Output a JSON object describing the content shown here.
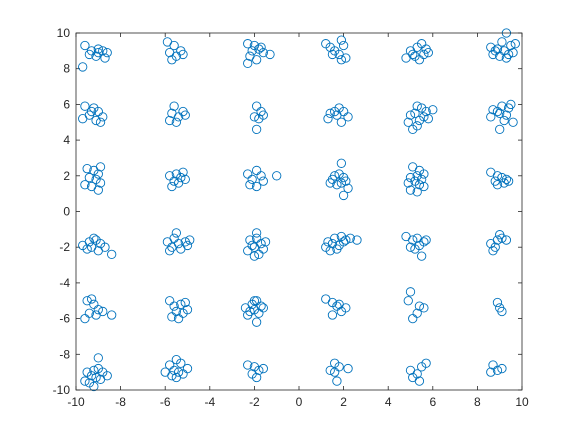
{
  "chart_data": {
    "type": "scatter",
    "title": "",
    "xlabel": "",
    "ylabel": "",
    "xlim": [
      -10,
      10
    ],
    "ylim": [
      -10,
      10
    ],
    "xticks": [
      -10,
      -8,
      -6,
      -4,
      -2,
      0,
      2,
      4,
      6,
      8,
      10
    ],
    "yticks": [
      -10,
      -8,
      -6,
      -4,
      -2,
      0,
      2,
      4,
      6,
      8,
      10
    ],
    "xtick_labels": [
      "-10",
      "-8",
      "-6",
      "-4",
      "-2",
      "0",
      "2",
      "4",
      "6",
      "8",
      "10"
    ],
    "ytick_labels": [
      "-10",
      "-8",
      "-6",
      "-4",
      "-2",
      "0",
      "2",
      "4",
      "6",
      "8",
      "10"
    ],
    "grid": false,
    "marker": "circle",
    "marker_color": "#0072BD",
    "series": [
      {
        "points": [
          [
            -9.6,
            9.3
          ],
          [
            -9.3,
            9.0
          ],
          [
            -9.0,
            9.1
          ],
          [
            -8.8,
            9.0
          ],
          [
            -8.6,
            8.9
          ],
          [
            -9.4,
            8.8
          ],
          [
            -9.1,
            8.7
          ],
          [
            -8.7,
            8.6
          ],
          [
            -9.0,
            8.9
          ],
          [
            -9.7,
            8.1
          ],
          [
            -5.9,
            9.5
          ],
          [
            -5.6,
            9.3
          ],
          [
            -5.3,
            9.0
          ],
          [
            -5.8,
            8.9
          ],
          [
            -5.5,
            8.7
          ],
          [
            -5.7,
            8.5
          ],
          [
            -5.2,
            8.8
          ],
          [
            -2.3,
            9.4
          ],
          [
            -2.0,
            9.3
          ],
          [
            -1.8,
            9.1
          ],
          [
            -2.1,
            9.0
          ],
          [
            -1.6,
            8.9
          ],
          [
            -1.3,
            8.8
          ],
          [
            -2.2,
            8.7
          ],
          [
            -1.9,
            8.5
          ],
          [
            -2.3,
            8.3
          ],
          [
            -1.7,
            9.2
          ],
          [
            1.2,
            9.4
          ],
          [
            1.4,
            9.2
          ],
          [
            1.6,
            9.0
          ],
          [
            1.9,
            9.6
          ],
          [
            2.0,
            9.3
          ],
          [
            1.8,
            8.8
          ],
          [
            2.1,
            8.6
          ],
          [
            1.9,
            8.5
          ],
          [
            1.5,
            8.8
          ],
          [
            5.5,
            9.4
          ],
          [
            5.3,
            9.2
          ],
          [
            5.7,
            9.1
          ],
          [
            5.0,
            9.0
          ],
          [
            5.6,
            8.8
          ],
          [
            5.2,
            8.7
          ],
          [
            4.8,
            8.6
          ],
          [
            5.4,
            8.5
          ],
          [
            5.8,
            8.9
          ],
          [
            5.1,
            8.8
          ],
          [
            8.6,
            9.2
          ],
          [
            8.9,
            9.1
          ],
          [
            9.2,
            9.0
          ],
          [
            9.5,
            9.3
          ],
          [
            9.6,
            8.9
          ],
          [
            9.0,
            8.7
          ],
          [
            8.7,
            8.8
          ],
          [
            9.3,
            8.6
          ],
          [
            9.1,
            9.5
          ],
          [
            9.3,
            10.0
          ],
          [
            9.7,
            9.4
          ],
          [
            8.8,
            9.0
          ],
          [
            9.4,
            8.8
          ],
          [
            -9.6,
            5.9
          ],
          [
            -9.2,
            5.8
          ],
          [
            -9.0,
            5.6
          ],
          [
            -9.4,
            5.4
          ],
          [
            -8.8,
            5.3
          ],
          [
            -9.7,
            5.2
          ],
          [
            -9.1,
            5.1
          ],
          [
            -8.9,
            5.0
          ],
          [
            -9.3,
            5.6
          ],
          [
            -5.6,
            5.9
          ],
          [
            -5.2,
            5.6
          ],
          [
            -5.7,
            5.5
          ],
          [
            -5.4,
            5.3
          ],
          [
            -5.8,
            5.1
          ],
          [
            -5.5,
            5.0
          ],
          [
            -5.1,
            5.4
          ],
          [
            -1.9,
            5.9
          ],
          [
            -1.7,
            5.6
          ],
          [
            -2.0,
            5.3
          ],
          [
            -1.8,
            5.2
          ],
          [
            -1.6,
            5.4
          ],
          [
            -1.9,
            4.6
          ],
          [
            1.8,
            5.8
          ],
          [
            2.0,
            5.6
          ],
          [
            1.4,
            5.5
          ],
          [
            1.7,
            5.4
          ],
          [
            2.2,
            5.3
          ],
          [
            1.3,
            5.2
          ],
          [
            1.9,
            5.0
          ],
          [
            1.6,
            5.6
          ],
          [
            5.3,
            5.9
          ],
          [
            5.5,
            5.8
          ],
          [
            5.7,
            5.6
          ],
          [
            5.2,
            5.5
          ],
          [
            5.0,
            5.4
          ],
          [
            5.6,
            5.3
          ],
          [
            5.4,
            5.1
          ],
          [
            4.9,
            5.0
          ],
          [
            5.3,
            4.8
          ],
          [
            5.1,
            4.6
          ],
          [
            5.8,
            5.2
          ],
          [
            6.0,
            5.7
          ],
          [
            8.7,
            5.7
          ],
          [
            9.1,
            5.9
          ],
          [
            9.4,
            5.8
          ],
          [
            9.0,
            5.5
          ],
          [
            9.3,
            5.4
          ],
          [
            8.6,
            5.3
          ],
          [
            9.2,
            5.1
          ],
          [
            9.6,
            5.0
          ],
          [
            9.0,
            4.6
          ],
          [
            9.5,
            6.0
          ],
          [
            8.9,
            5.6
          ],
          [
            -9.5,
            2.4
          ],
          [
            -9.2,
            2.3
          ],
          [
            -9.0,
            2.1
          ],
          [
            -9.4,
            1.9
          ],
          [
            -9.1,
            1.8
          ],
          [
            -8.9,
            1.6
          ],
          [
            -9.6,
            1.5
          ],
          [
            -9.3,
            1.4
          ],
          [
            -9.0,
            1.2
          ],
          [
            -8.9,
            2.5
          ],
          [
            -5.8,
            2.0
          ],
          [
            -5.5,
            2.1
          ],
          [
            -5.3,
            1.9
          ],
          [
            -5.6,
            1.7
          ],
          [
            -5.4,
            1.6
          ],
          [
            -5.1,
            1.8
          ],
          [
            -5.7,
            1.4
          ],
          [
            -5.2,
            2.2
          ],
          [
            -2.3,
            2.1
          ],
          [
            -1.9,
            2.3
          ],
          [
            -1.7,
            2.0
          ],
          [
            -2.1,
            1.8
          ],
          [
            -1.6,
            1.7
          ],
          [
            -2.2,
            1.5
          ],
          [
            -1.9,
            1.4
          ],
          [
            -1.0,
            2.0
          ],
          [
            1.6,
            2.0
          ],
          [
            1.8,
            2.1
          ],
          [
            2.0,
            1.9
          ],
          [
            1.5,
            1.8
          ],
          [
            1.9,
            1.6
          ],
          [
            1.7,
            1.5
          ],
          [
            2.1,
            1.7
          ],
          [
            1.4,
            1.6
          ],
          [
            1.9,
            2.7
          ],
          [
            2.2,
            1.3
          ],
          [
            2.0,
            0.9
          ],
          [
            5.1,
            2.5
          ],
          [
            5.4,
            2.3
          ],
          [
            5.6,
            2.1
          ],
          [
            5.3,
            2.0
          ],
          [
            5.0,
            1.9
          ],
          [
            5.5,
            1.8
          ],
          [
            5.2,
            1.7
          ],
          [
            4.9,
            1.6
          ],
          [
            5.4,
            1.5
          ],
          [
            5.6,
            1.4
          ],
          [
            5.0,
            1.2
          ],
          [
            5.3,
            1.1
          ],
          [
            8.6,
            2.2
          ],
          [
            8.9,
            2.0
          ],
          [
            9.1,
            1.9
          ],
          [
            8.8,
            1.7
          ],
          [
            9.3,
            1.8
          ],
          [
            9.2,
            1.6
          ],
          [
            8.9,
            1.5
          ],
          [
            9.4,
            1.7
          ],
          [
            -9.7,
            -1.9
          ],
          [
            -9.4,
            -1.7
          ],
          [
            -9.1,
            -1.6
          ],
          [
            -8.9,
            -1.8
          ],
          [
            -9.3,
            -2.0
          ],
          [
            -9.0,
            -2.2
          ],
          [
            -8.7,
            -2.0
          ],
          [
            -9.5,
            -2.1
          ],
          [
            -8.4,
            -2.4
          ],
          [
            -9.2,
            -1.5
          ],
          [
            -5.9,
            -1.7
          ],
          [
            -5.6,
            -1.5
          ],
          [
            -5.4,
            -1.8
          ],
          [
            -5.1,
            -1.7
          ],
          [
            -5.7,
            -2.0
          ],
          [
            -5.3,
            -2.1
          ],
          [
            -5.0,
            -1.9
          ],
          [
            -4.9,
            -1.6
          ],
          [
            -5.5,
            -1.2
          ],
          [
            -5.8,
            -2.2
          ],
          [
            -2.2,
            -1.6
          ],
          [
            -1.9,
            -1.5
          ],
          [
            -1.7,
            -1.8
          ],
          [
            -2.0,
            -2.0
          ],
          [
            -1.6,
            -2.1
          ],
          [
            -2.3,
            -2.2
          ],
          [
            -1.8,
            -2.4
          ],
          [
            -2.1,
            -1.9
          ],
          [
            -1.5,
            -1.7
          ],
          [
            -1.9,
            -1.2
          ],
          [
            -2.0,
            -2.5
          ],
          [
            1.3,
            -1.7
          ],
          [
            1.6,
            -1.5
          ],
          [
            1.9,
            -1.4
          ],
          [
            2.1,
            -1.6
          ],
          [
            1.5,
            -1.8
          ],
          [
            1.8,
            -1.9
          ],
          [
            2.0,
            -1.7
          ],
          [
            1.2,
            -2.0
          ],
          [
            1.7,
            -2.1
          ],
          [
            2.3,
            -1.5
          ],
          [
            1.4,
            -2.2
          ],
          [
            2.6,
            -1.6
          ],
          [
            4.8,
            -1.4
          ],
          [
            5.1,
            -1.6
          ],
          [
            5.3,
            -1.5
          ],
          [
            5.6,
            -1.7
          ],
          [
            5.4,
            -1.9
          ],
          [
            5.0,
            -2.0
          ],
          [
            5.7,
            -1.6
          ],
          [
            5.5,
            -2.5
          ],
          [
            5.2,
            -2.1
          ],
          [
            8.6,
            -1.8
          ],
          [
            8.9,
            -1.6
          ],
          [
            9.1,
            -1.5
          ],
          [
            8.8,
            -2.0
          ],
          [
            9.3,
            -1.6
          ],
          [
            8.7,
            -2.2
          ],
          [
            9.0,
            -1.3
          ],
          [
            -9.5,
            -5.0
          ],
          [
            -9.2,
            -5.2
          ],
          [
            -9.0,
            -5.5
          ],
          [
            -9.4,
            -5.7
          ],
          [
            -9.1,
            -5.8
          ],
          [
            -8.8,
            -5.6
          ],
          [
            -9.6,
            -6.0
          ],
          [
            -8.4,
            -5.8
          ],
          [
            -9.3,
            -4.9
          ],
          [
            -5.8,
            -5.0
          ],
          [
            -5.6,
            -5.3
          ],
          [
            -5.3,
            -5.2
          ],
          [
            -5.5,
            -5.6
          ],
          [
            -5.2,
            -5.7
          ],
          [
            -5.0,
            -5.5
          ],
          [
            -5.7,
            -5.9
          ],
          [
            -5.4,
            -6.0
          ],
          [
            -5.1,
            -5.1
          ],
          [
            -2.4,
            -5.4
          ],
          [
            -2.1,
            -5.2
          ],
          [
            -1.9,
            -5.0
          ],
          [
            -1.7,
            -5.3
          ],
          [
            -2.2,
            -5.6
          ],
          [
            -1.8,
            -5.7
          ],
          [
            -2.0,
            -5.5
          ],
          [
            -1.6,
            -5.4
          ],
          [
            -2.3,
            -5.8
          ],
          [
            -1.9,
            -6.2
          ],
          [
            -2.0,
            -5.0
          ],
          [
            1.2,
            -4.9
          ],
          [
            1.5,
            -5.1
          ],
          [
            1.7,
            -5.3
          ],
          [
            1.9,
            -5.6
          ],
          [
            2.1,
            -5.4
          ],
          [
            1.5,
            -5.8
          ],
          [
            1.8,
            -5.2
          ],
          [
            4.9,
            -5.0
          ],
          [
            5.4,
            -5.3
          ],
          [
            5.6,
            -5.4
          ],
          [
            5.3,
            -5.7
          ],
          [
            5.1,
            -6.0
          ],
          [
            5.0,
            -4.5
          ],
          [
            8.9,
            -5.1
          ],
          [
            9.0,
            -5.4
          ],
          [
            9.1,
            -5.6
          ],
          [
            -9.5,
            -9.0
          ],
          [
            -9.2,
            -8.9
          ],
          [
            -9.0,
            -8.8
          ],
          [
            -8.8,
            -9.0
          ],
          [
            -9.3,
            -9.2
          ],
          [
            -9.1,
            -9.3
          ],
          [
            -8.9,
            -9.4
          ],
          [
            -9.6,
            -9.5
          ],
          [
            -9.4,
            -9.6
          ],
          [
            -9.2,
            -9.8
          ],
          [
            -8.6,
            -9.2
          ],
          [
            -9.0,
            -8.2
          ],
          [
            -5.8,
            -8.6
          ],
          [
            -5.5,
            -8.3
          ],
          [
            -5.3,
            -8.5
          ],
          [
            -5.6,
            -8.9
          ],
          [
            -5.4,
            -9.0
          ],
          [
            -5.2,
            -9.1
          ],
          [
            -5.7,
            -9.2
          ],
          [
            -5.5,
            -9.3
          ],
          [
            -5.0,
            -8.8
          ],
          [
            -6.0,
            -9.0
          ],
          [
            -2.3,
            -8.6
          ],
          [
            -2.0,
            -8.7
          ],
          [
            -1.8,
            -8.9
          ],
          [
            -1.6,
            -8.8
          ],
          [
            -2.1,
            -9.1
          ],
          [
            -1.9,
            -9.3
          ],
          [
            1.6,
            -8.5
          ],
          [
            1.8,
            -8.7
          ],
          [
            1.4,
            -8.9
          ],
          [
            2.2,
            -8.8
          ],
          [
            1.6,
            -9.0
          ],
          [
            1.7,
            -9.5
          ],
          [
            5.0,
            -8.9
          ],
          [
            5.3,
            -9.1
          ],
          [
            5.5,
            -8.7
          ],
          [
            5.7,
            -8.5
          ],
          [
            5.1,
            -9.3
          ],
          [
            5.4,
            -9.5
          ],
          [
            8.7,
            -8.6
          ],
          [
            8.9,
            -8.9
          ],
          [
            9.1,
            -8.8
          ],
          [
            8.6,
            -9.0
          ]
        ]
      }
    ]
  }
}
